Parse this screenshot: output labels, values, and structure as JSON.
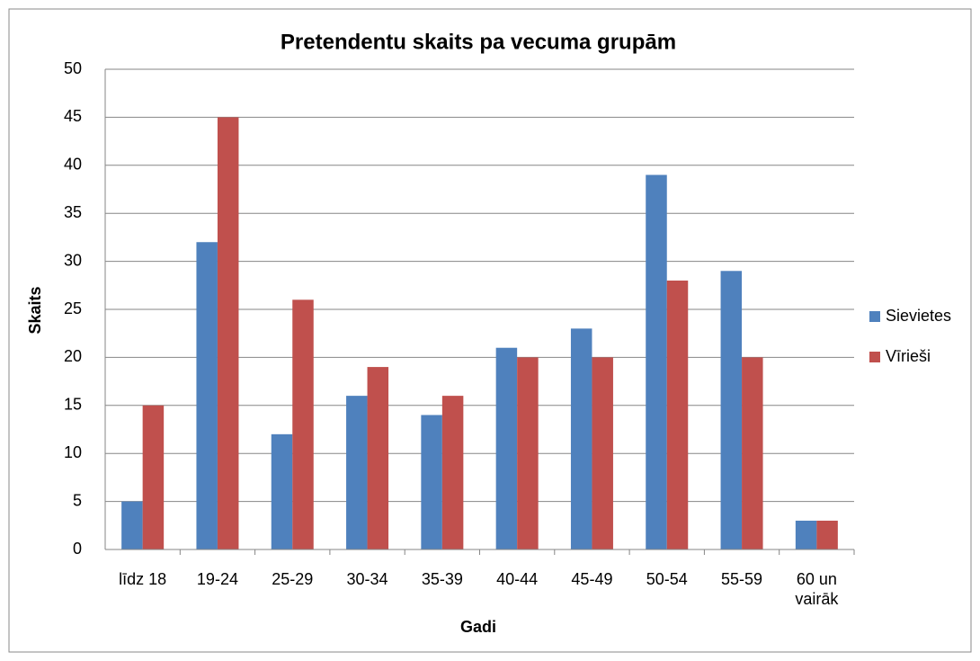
{
  "chart_data": {
    "type": "bar",
    "title": "Pretendentu skaits pa vecuma grupām",
    "x_label": "Gadi",
    "y_label": "Skaits",
    "categories": [
      "līdz 18",
      "19-24",
      "25-29",
      "30-34",
      "35-39",
      "40-44",
      "45-49",
      "50-54",
      "55-59",
      "60 un vairāk"
    ],
    "series": [
      {
        "name": "Sievietes",
        "color": "#4f81bd",
        "values": [
          5,
          32,
          12,
          16,
          14,
          21,
          23,
          39,
          29,
          3
        ]
      },
      {
        "name": "Vīrieši",
        "color": "#c0504d",
        "values": [
          15,
          45,
          26,
          19,
          16,
          20,
          20,
          28,
          20,
          3
        ]
      }
    ],
    "ylim": [
      0,
      50
    ],
    "yticks": [
      0,
      5,
      10,
      15,
      20,
      25,
      30,
      35,
      40,
      45,
      50
    ],
    "grid": true,
    "legend": "right"
  }
}
